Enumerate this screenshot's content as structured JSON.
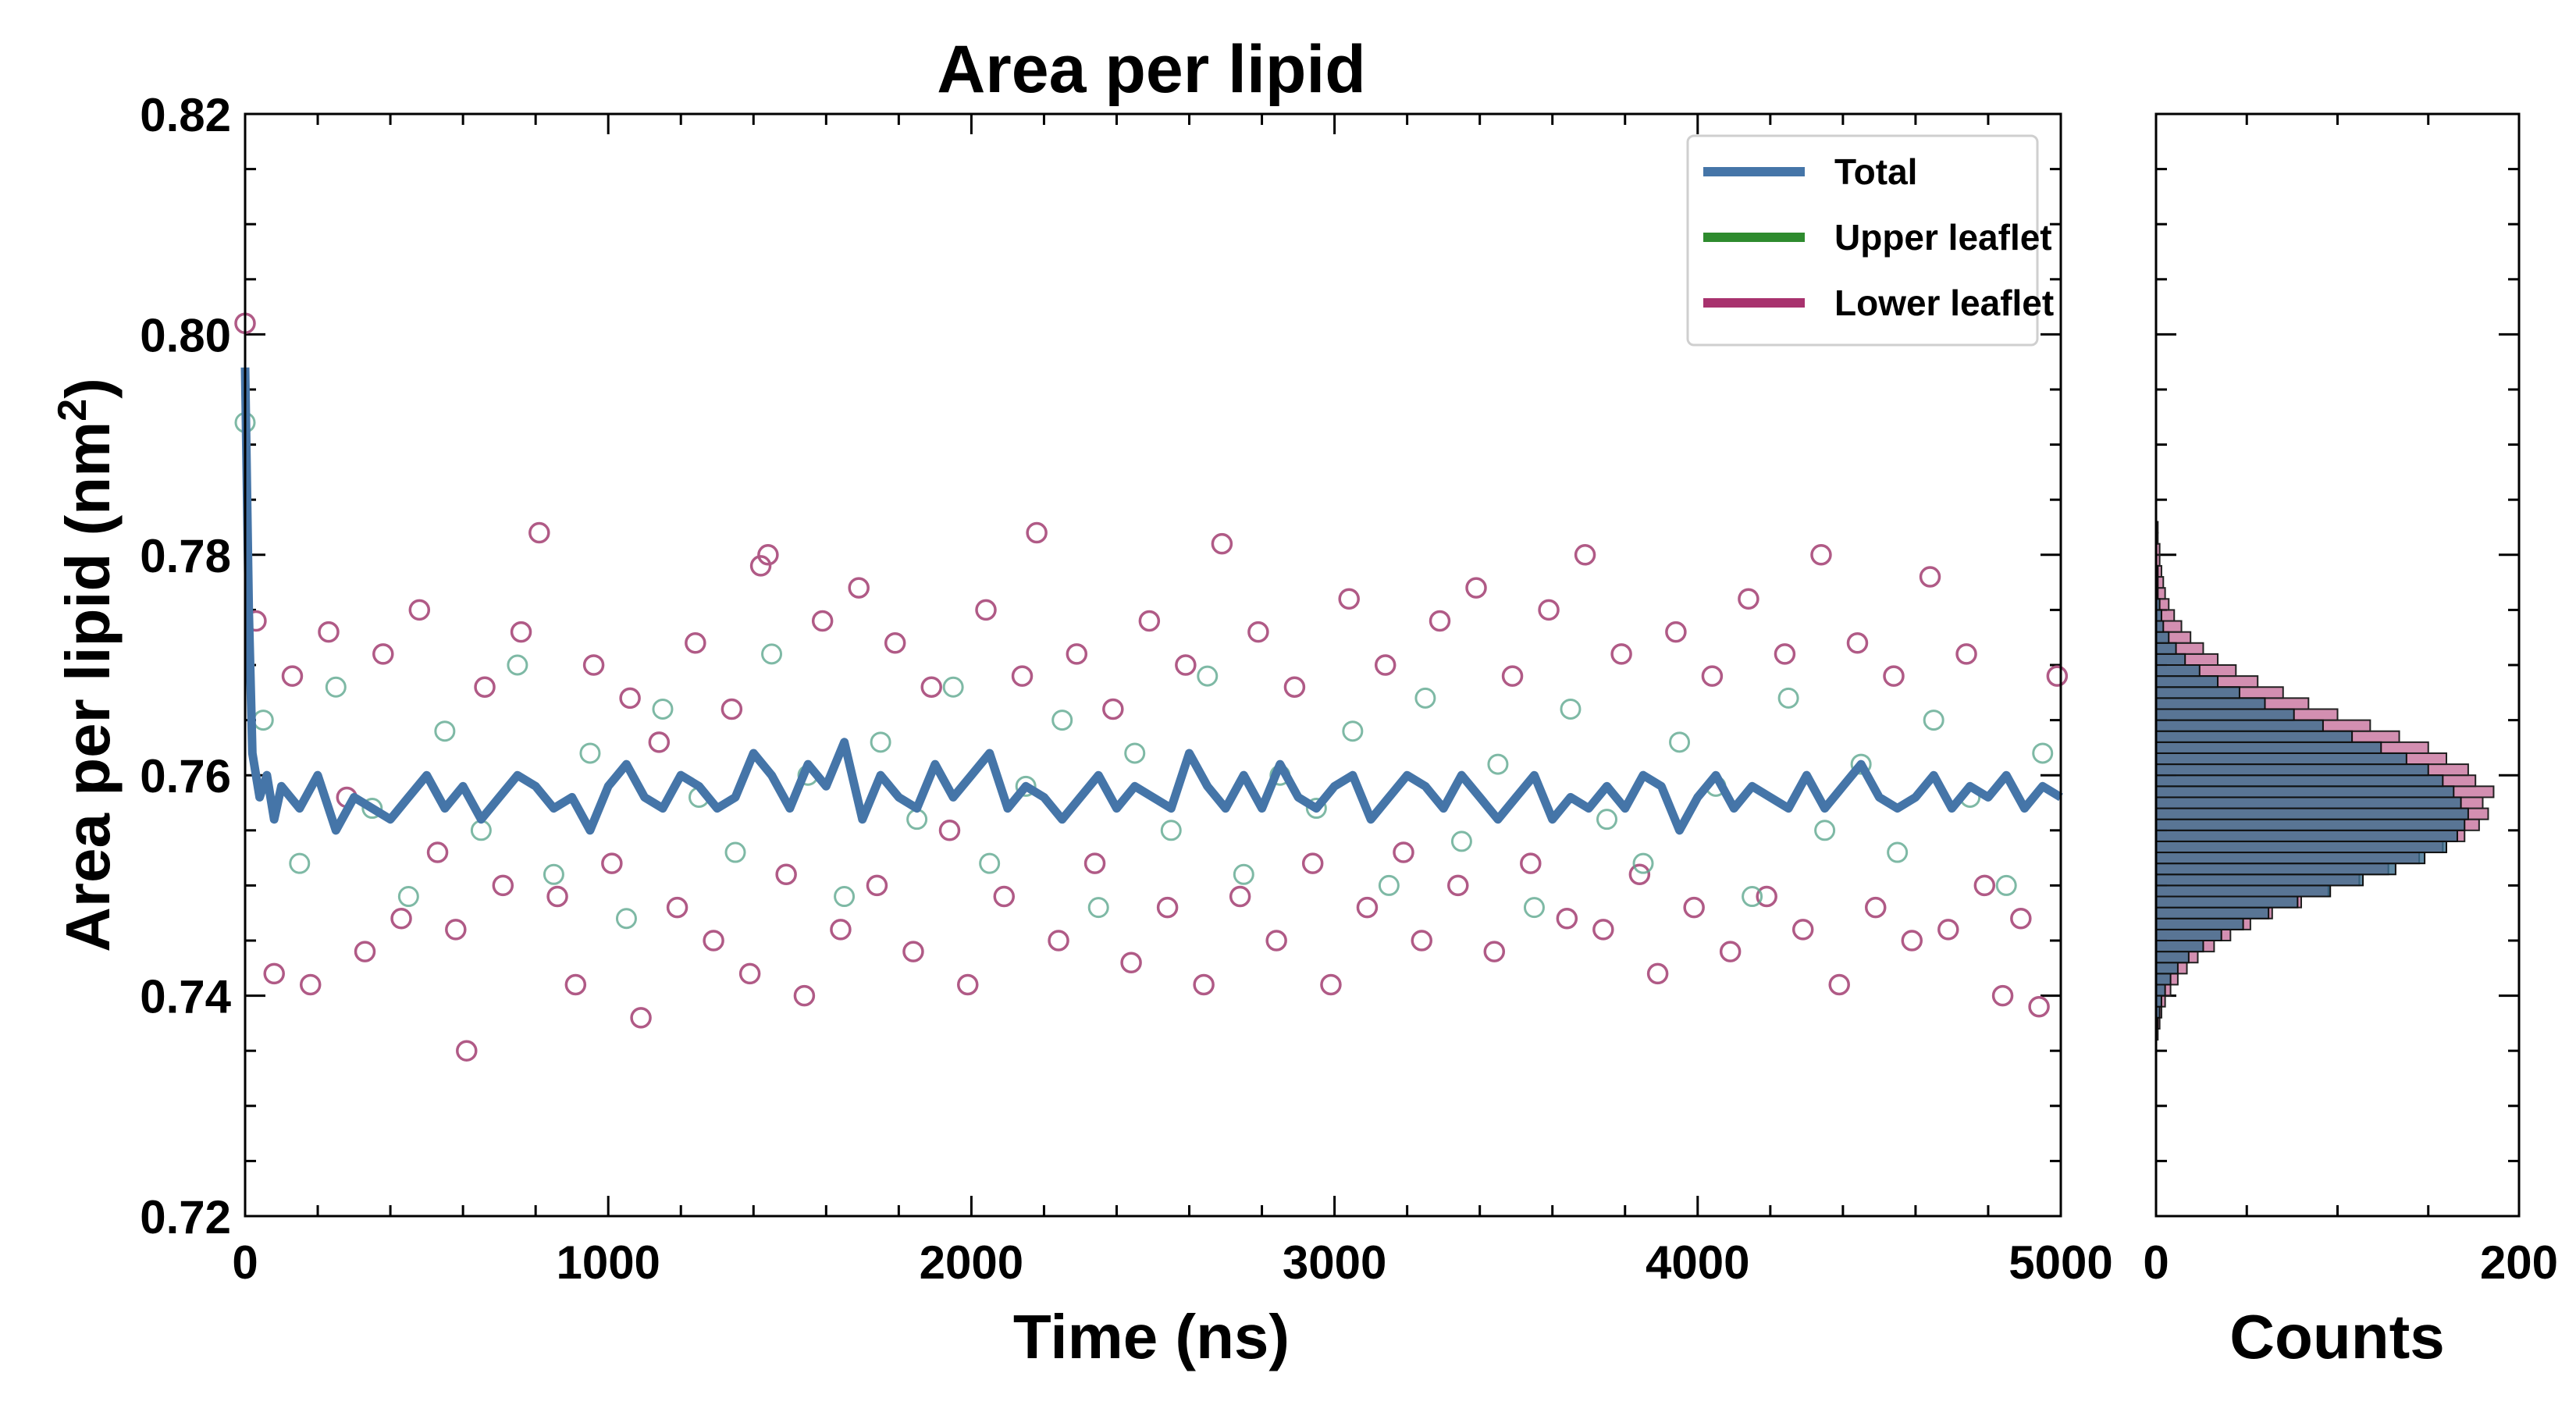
{
  "colors": {
    "total": "#4575a8",
    "upper": "#2e8b2e",
    "lower": "#a8326e",
    "upper_marker": "#5ea88e",
    "lower_marker": "#b05a86",
    "hist_total_fill": "#3b6e8f",
    "hist_lower_fill": "#c06090"
  },
  "chart_data": [
    {
      "id": "main",
      "type": "scatter+line",
      "title": "Area per lipid",
      "xlabel": "Time (ns)",
      "ylabel": "Area per lipid (nm",
      "ylabel_sup": "2",
      "ylabel_close": ")",
      "xlim": [
        0,
        5000
      ],
      "ylim": [
        0.72,
        0.82
      ],
      "xticks": [
        0,
        1000,
        2000,
        3000,
        4000,
        5000
      ],
      "xtick_labels": [
        "0",
        "1000",
        "2000",
        "3000",
        "4000",
        "5000"
      ],
      "yticks": [
        0.72,
        0.74,
        0.76,
        0.78,
        0.8,
        0.82
      ],
      "ytick_labels": [
        "0.72",
        "0.74",
        "0.76",
        "0.78",
        "0.80",
        "0.82"
      ],
      "legend_position": "top-right",
      "legend": [
        "Total",
        "Upper leaflet",
        "Lower leaflet"
      ],
      "series": [
        {
          "name": "Total",
          "kind": "line",
          "x": [
            0,
            10,
            20,
            40,
            60,
            80,
            100,
            150,
            200,
            250,
            300,
            350,
            400,
            450,
            500,
            550,
            600,
            650,
            700,
            750,
            800,
            850,
            900,
            950,
            1000,
            1050,
            1100,
            1150,
            1200,
            1250,
            1300,
            1350,
            1400,
            1450,
            1500,
            1550,
            1600,
            1650,
            1700,
            1750,
            1800,
            1850,
            1900,
            1950,
            2000,
            2050,
            2100,
            2150,
            2200,
            2250,
            2300,
            2350,
            2400,
            2450,
            2500,
            2550,
            2600,
            2650,
            2700,
            2750,
            2800,
            2850,
            2900,
            2950,
            3000,
            3050,
            3100,
            3150,
            3200,
            3250,
            3300,
            3350,
            3400,
            3450,
            3500,
            3550,
            3600,
            3650,
            3700,
            3750,
            3800,
            3850,
            3900,
            3950,
            4000,
            4050,
            4100,
            4150,
            4200,
            4250,
            4300,
            4350,
            4400,
            4450,
            4500,
            4550,
            4600,
            4650,
            4700,
            4750,
            4800,
            4850,
            4900,
            4950,
            5000
          ],
          "values": [
            0.797,
            0.775,
            0.762,
            0.758,
            0.76,
            0.756,
            0.759,
            0.757,
            0.76,
            0.755,
            0.758,
            0.757,
            0.756,
            0.758,
            0.76,
            0.757,
            0.759,
            0.756,
            0.758,
            0.76,
            0.759,
            0.757,
            0.758,
            0.755,
            0.759,
            0.761,
            0.758,
            0.757,
            0.76,
            0.759,
            0.757,
            0.758,
            0.762,
            0.76,
            0.757,
            0.761,
            0.759,
            0.763,
            0.756,
            0.76,
            0.758,
            0.757,
            0.761,
            0.758,
            0.76,
            0.762,
            0.757,
            0.759,
            0.758,
            0.756,
            0.758,
            0.76,
            0.757,
            0.759,
            0.758,
            0.757,
            0.762,
            0.759,
            0.757,
            0.76,
            0.757,
            0.761,
            0.758,
            0.757,
            0.759,
            0.76,
            0.756,
            0.758,
            0.76,
            0.759,
            0.757,
            0.76,
            0.758,
            0.756,
            0.758,
            0.76,
            0.756,
            0.758,
            0.757,
            0.759,
            0.757,
            0.76,
            0.759,
            0.755,
            0.758,
            0.76,
            0.757,
            0.759,
            0.758,
            0.757,
            0.76,
            0.757,
            0.759,
            0.761,
            0.758,
            0.757,
            0.758,
            0.76,
            0.757,
            0.759,
            0.758,
            0.76,
            0.757,
            0.759,
            0.758
          ]
        },
        {
          "name": "Upper leaflet",
          "kind": "scatter",
          "x": [
            0,
            50,
            150,
            250,
            350,
            450,
            550,
            650,
            750,
            850,
            950,
            1050,
            1150,
            1250,
            1350,
            1450,
            1550,
            1650,
            1750,
            1850,
            1950,
            2050,
            2150,
            2250,
            2350,
            2450,
            2550,
            2650,
            2750,
            2850,
            2950,
            3050,
            3150,
            3250,
            3350,
            3450,
            3550,
            3650,
            3750,
            3850,
            3950,
            4050,
            4150,
            4250,
            4350,
            4450,
            4550,
            4650,
            4750,
            4850,
            4950
          ],
          "values": [
            0.792,
            0.765,
            0.752,
            0.768,
            0.757,
            0.749,
            0.764,
            0.755,
            0.77,
            0.751,
            0.762,
            0.747,
            0.766,
            0.758,
            0.753,
            0.771,
            0.76,
            0.749,
            0.763,
            0.756,
            0.768,
            0.752,
            0.759,
            0.765,
            0.748,
            0.762,
            0.755,
            0.769,
            0.751,
            0.76,
            0.757,
            0.764,
            0.75,
            0.767,
            0.754,
            0.761,
            0.748,
            0.766,
            0.756,
            0.752,
            0.763,
            0.759,
            0.749,
            0.767,
            0.755,
            0.761,
            0.753,
            0.765,
            0.758,
            0.75,
            0.762
          ]
        },
        {
          "name": "Lower leaflet",
          "kind": "scatter",
          "x": [
            0,
            30,
            80,
            130,
            180,
            230,
            280,
            330,
            380,
            430,
            480,
            530,
            580,
            610,
            660,
            710,
            760,
            810,
            860,
            910,
            960,
            1010,
            1060,
            1090,
            1140,
            1190,
            1240,
            1290,
            1340,
            1390,
            1420,
            1440,
            1490,
            1540,
            1590,
            1640,
            1690,
            1740,
            1790,
            1840,
            1890,
            1940,
            1990,
            2040,
            2090,
            2140,
            2180,
            2240,
            2290,
            2340,
            2390,
            2440,
            2490,
            2540,
            2590,
            2640,
            2690,
            2740,
            2790,
            2840,
            2890,
            2940,
            2990,
            3040,
            3090,
            3140,
            3190,
            3240,
            3290,
            3340,
            3390,
            3440,
            3490,
            3540,
            3590,
            3640,
            3690,
            3740,
            3790,
            3840,
            3890,
            3940,
            3990,
            4040,
            4090,
            4140,
            4190,
            4240,
            4290,
            4340,
            4390,
            4440,
            4490,
            4540,
            4590,
            4640,
            4690,
            4740,
            4790,
            4840,
            4890,
            4940,
            4990
          ],
          "values": [
            0.801,
            0.774,
            0.742,
            0.769,
            0.741,
            0.773,
            0.758,
            0.744,
            0.771,
            0.747,
            0.775,
            0.753,
            0.746,
            0.735,
            0.768,
            0.75,
            0.773,
            0.782,
            0.749,
            0.741,
            0.77,
            0.752,
            0.767,
            0.738,
            0.763,
            0.748,
            0.772,
            0.745,
            0.766,
            0.742,
            0.779,
            0.78,
            0.751,
            0.74,
            0.774,
            0.746,
            0.777,
            0.75,
            0.772,
            0.744,
            0.768,
            0.755,
            0.741,
            0.775,
            0.749,
            0.769,
            0.782,
            0.745,
            0.771,
            0.752,
            0.766,
            0.743,
            0.774,
            0.748,
            0.77,
            0.741,
            0.781,
            0.749,
            0.773,
            0.745,
            0.768,
            0.752,
            0.741,
            0.776,
            0.748,
            0.77,
            0.753,
            0.745,
            0.774,
            0.75,
            0.777,
            0.744,
            0.769,
            0.752,
            0.775,
            0.747,
            0.78,
            0.746,
            0.771,
            0.751,
            0.742,
            0.773,
            0.748,
            0.769,
            0.744,
            0.776,
            0.749,
            0.771,
            0.746,
            0.78,
            0.741,
            0.772,
            0.748,
            0.769,
            0.745,
            0.778,
            0.746,
            0.771,
            0.75,
            0.74,
            0.747,
            0.739,
            0.769
          ]
        }
      ]
    },
    {
      "id": "histogram",
      "type": "bar",
      "orientation": "horizontal",
      "xlabel": "Counts",
      "xlim": [
        0,
        200
      ],
      "xticks": [
        0,
        200
      ],
      "xtick_labels": [
        "0",
        "200"
      ],
      "ylim": [
        0.72,
        0.82
      ],
      "bin_width": 0.001,
      "bins": [
        0.736,
        0.737,
        0.738,
        0.739,
        0.74,
        0.741,
        0.742,
        0.743,
        0.744,
        0.745,
        0.746,
        0.747,
        0.748,
        0.749,
        0.75,
        0.751,
        0.752,
        0.753,
        0.754,
        0.755,
        0.756,
        0.757,
        0.758,
        0.759,
        0.76,
        0.761,
        0.762,
        0.763,
        0.764,
        0.765,
        0.766,
        0.767,
        0.768,
        0.769,
        0.77,
        0.771,
        0.772,
        0.773,
        0.774,
        0.775,
        0.776,
        0.777,
        0.778,
        0.779,
        0.78,
        0.781,
        0.782
      ],
      "series": [
        {
          "name": "Lower leaflet",
          "values": [
            1,
            2,
            3,
            5,
            8,
            12,
            17,
            23,
            32,
            41,
            52,
            64,
            80,
            95,
            112,
            128,
            145,
            158,
            170,
            178,
            183,
            180,
            186,
            176,
            172,
            160,
            150,
            134,
            118,
            100,
            84,
            70,
            56,
            44,
            34,
            26,
            19,
            14,
            10,
            7,
            5,
            4,
            3,
            2,
            2,
            1,
            1
          ]
        },
        {
          "name": "Total",
          "values": [
            0,
            1,
            2,
            3,
            5,
            8,
            12,
            18,
            26,
            36,
            48,
            62,
            78,
            96,
            114,
            132,
            148,
            160,
            166,
            170,
            172,
            168,
            164,
            158,
            150,
            138,
            124,
            108,
            92,
            76,
            60,
            46,
            34,
            24,
            16,
            11,
            7,
            4,
            3,
            2,
            1,
            1,
            1,
            0,
            0,
            0,
            0
          ]
        }
      ]
    }
  ]
}
